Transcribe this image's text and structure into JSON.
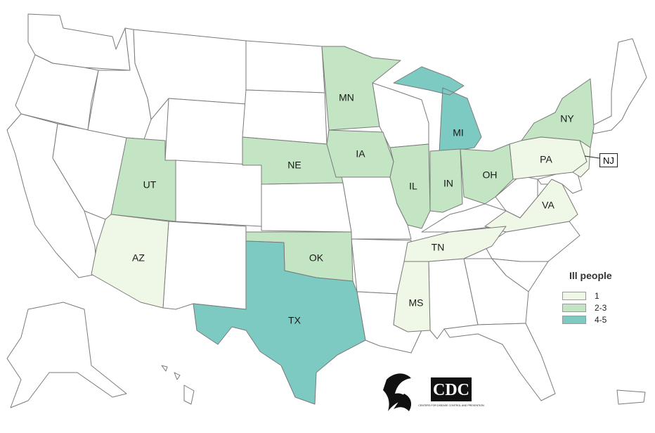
{
  "colors": {
    "one": "#eff7e7",
    "two_three": "#c3e5c3",
    "four_five": "#7dcac3",
    "none": "#ffffff",
    "border": "#7a7a7a"
  },
  "states": [
    {
      "code": "MN",
      "label": "MN",
      "bin": "two_three"
    },
    {
      "code": "NY",
      "label": "NY",
      "bin": "two_three"
    },
    {
      "code": "MI",
      "label": "MI",
      "bin": "four_five"
    },
    {
      "code": "NE",
      "label": "NE",
      "bin": "two_three"
    },
    {
      "code": "IA",
      "label": "IA",
      "bin": "two_three"
    },
    {
      "code": "UT",
      "label": "UT",
      "bin": "two_three"
    },
    {
      "code": "PA",
      "label": "PA",
      "bin": "one"
    },
    {
      "code": "NJ",
      "label": "NJ",
      "bin": "one"
    },
    {
      "code": "IL",
      "label": "IL",
      "bin": "two_three"
    },
    {
      "code": "IN",
      "label": "IN",
      "bin": "two_three"
    },
    {
      "code": "OH",
      "label": "OH",
      "bin": "two_three"
    },
    {
      "code": "VA",
      "label": "VA",
      "bin": "one"
    },
    {
      "code": "AZ",
      "label": "AZ",
      "bin": "one"
    },
    {
      "code": "OK",
      "label": "OK",
      "bin": "two_three"
    },
    {
      "code": "TN",
      "label": "TN",
      "bin": "one"
    },
    {
      "code": "MS",
      "label": "MS",
      "bin": "one"
    },
    {
      "code": "TX",
      "label": "TX",
      "bin": "four_five"
    }
  ],
  "legend": {
    "title": "Ill people",
    "items": [
      {
        "label": "1",
        "bin": "one"
      },
      {
        "label": "2-3",
        "bin": "two_three"
      },
      {
        "label": "4-5",
        "bin": "four_five"
      }
    ]
  },
  "logos": {
    "hhs_text": "DEPARTMENT OF HEALTH & HUMAN SERVICES USA",
    "cdc_text": "CDC",
    "cdc_subtext": "CENTERS FOR DISEASE CONTROL AND PREVENTION"
  }
}
